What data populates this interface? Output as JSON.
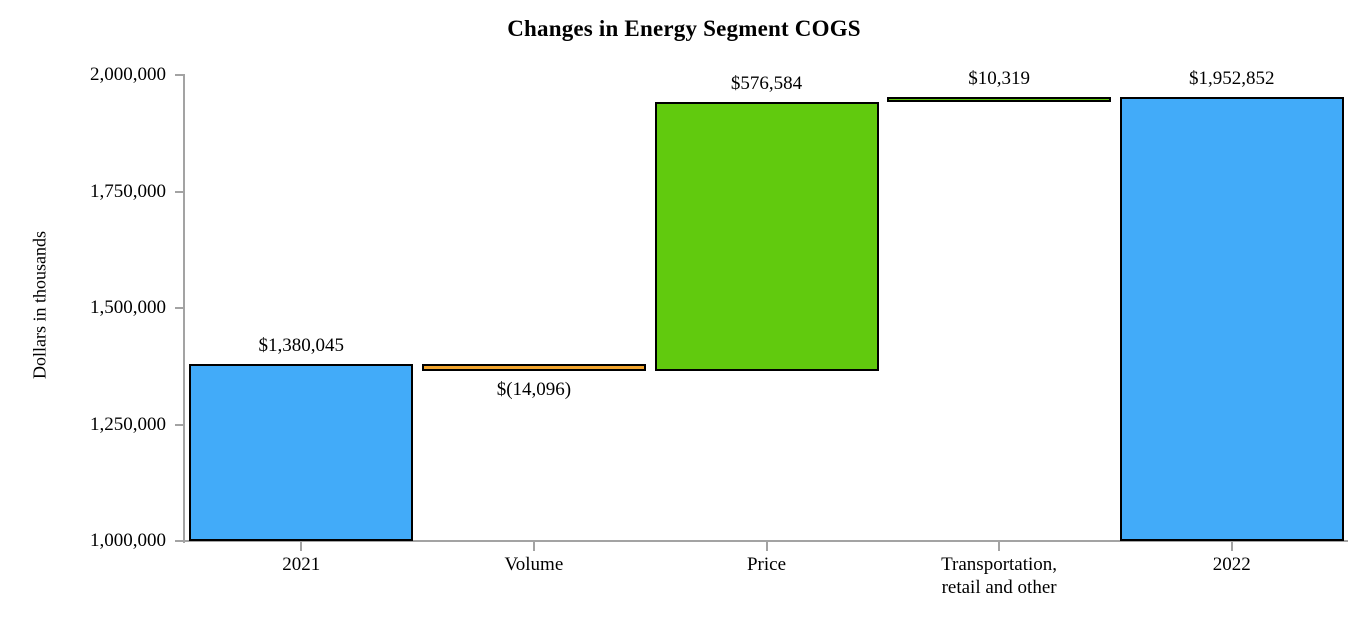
{
  "chart": {
    "title": "Changes in Energy Segment COGS",
    "ylabel": "Dollars in thousands"
  },
  "chart_data": {
    "type": "bar",
    "subtype": "waterfall",
    "title": "Changes in Energy Segment COGS",
    "xlabel": "",
    "ylabel": "Dollars in thousands",
    "ylim": [
      1000000,
      2000000
    ],
    "ytick_step": 250000,
    "yticks": [
      1000000,
      1250000,
      1500000,
      1750000,
      2000000
    ],
    "ytick_labels": [
      "1,000,000",
      "1,250,000",
      "1,500,000",
      "1,750,000",
      "2,000,000"
    ],
    "grid": false,
    "legend_position": "none",
    "categories": [
      "2021",
      "Volume",
      "Price",
      "Transportation,\nretail and other",
      "2022"
    ],
    "values": [
      1380045,
      -14096,
      576584,
      10319,
      1952852
    ],
    "bars": [
      {
        "category": "2021",
        "value": 1380045,
        "value_label": "$1,380,045",
        "seg_start": 1000000,
        "seg_end": 1380045,
        "color": "blue",
        "role": "total",
        "label_position": "above"
      },
      {
        "category": "Volume",
        "value": -14096,
        "value_label": "$(14,096)",
        "seg_start": 1365949,
        "seg_end": 1380045,
        "color": "orange",
        "role": "decrease",
        "label_position": "below"
      },
      {
        "category": "Price",
        "value": 576584,
        "value_label": "$576,584",
        "seg_start": 1365949,
        "seg_end": 1942533,
        "color": "green",
        "role": "increase",
        "label_position": "above"
      },
      {
        "category": "Transportation,\nretail and other",
        "value": 10319,
        "value_label": "$10,319",
        "seg_start": 1942533,
        "seg_end": 1952852,
        "color": "green",
        "role": "increase",
        "label_position": "above"
      },
      {
        "category": "2022",
        "value": 1952852,
        "value_label": "$1,952,852",
        "seg_start": 1000000,
        "seg_end": 1952852,
        "color": "blue",
        "role": "total",
        "label_position": "above"
      }
    ],
    "colors": {
      "blue": "#42abf9",
      "green": "#61ca0e",
      "orange": "#f2a52e",
      "axis": "#a3a3a3",
      "bar_border": "#000000",
      "text": "#000000"
    }
  }
}
